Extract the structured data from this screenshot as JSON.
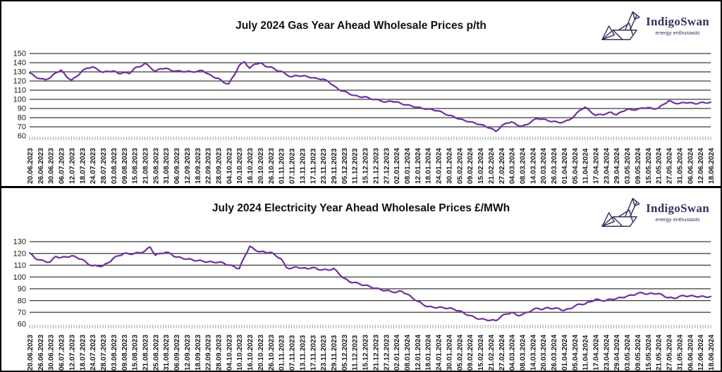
{
  "logo": {
    "brand": "IndigoSwan",
    "tagline": "energy enthusiasts"
  },
  "colors": {
    "line": "#7030A0",
    "grid": "#3a3a3a",
    "logo_navy": "#32325c",
    "tick": "#a0a0a0",
    "label": "#1a1a1a"
  },
  "chart_data": [
    {
      "type": "line",
      "title": "July 2024 Gas Year Ahead Wholesale Prices p/th",
      "ylabel": "p/th",
      "ylim": [
        60,
        150
      ],
      "yticks": [
        150,
        140,
        130,
        120,
        110,
        100,
        90,
        80,
        70,
        60
      ],
      "grid": true,
      "legend": "none",
      "points_per_label": 2,
      "x_labels": [
        "20.06.2023",
        "26.06.2023",
        "30.06.2023",
        "06.07.2023",
        "12.07.2023",
        "18.07.2023",
        "24.07.2023",
        "28.07.2023",
        "03.08.2023",
        "09.08.2023",
        "15.08.2023",
        "21.08.2023",
        "25.08.2023",
        "31.08.2023",
        "06.09.2023",
        "12.09.2023",
        "18.09.2023",
        "22.09.2023",
        "28.09.2023",
        "04.10.2023",
        "10.10.2023",
        "16.10.2023",
        "20.10.2023",
        "26.10.2023",
        "01.11.2023",
        "07.11.2023",
        "13.11.2023",
        "17.11.2023",
        "23.11.2023",
        "29.11.2023",
        "05.12.2023",
        "11.12.2023",
        "15.12.2023",
        "21.12.2023",
        "27.12.2023",
        "02.01.2024",
        "08.01.2024",
        "12.01.2024",
        "18.01.2024",
        "24.01.2024",
        "30.01.2024",
        "05.02.2024",
        "09.02.2024",
        "15.02.2024",
        "21.02.2024",
        "27.02.2024",
        "04.03.2024",
        "08.03.2024",
        "14.03.2024",
        "20.03.2024",
        "26.03.2024",
        "01.04.2024",
        "05.04.2024",
        "11.04.2024",
        "17.04.2024",
        "23.04.2024",
        "29.04.2024",
        "03.05.2024",
        "09.05.2024",
        "15.05.2024",
        "21.05.2024",
        "27.05.2024",
        "31.05.2024",
        "06.06.2024",
        "12.06.2024",
        "18.06.2024"
      ],
      "values": [
        129,
        125,
        122.5,
        121.5,
        124,
        129,
        132,
        125,
        121,
        125,
        131,
        134,
        135.5,
        132.5,
        129.5,
        130.5,
        131,
        128,
        129.5,
        128,
        134,
        135.5,
        139.5,
        135,
        130.5,
        133.5,
        134,
        131.5,
        131,
        130.5,
        130.5,
        130,
        130.5,
        131.5,
        128,
        124.5,
        123,
        118.5,
        117,
        126,
        137,
        141,
        134,
        138.5,
        140,
        136,
        135.5,
        132,
        130.8,
        127,
        124.5,
        126,
        125.5,
        125,
        123.5,
        122.5,
        122,
        119.5,
        115,
        110.5,
        109,
        106,
        104.3,
        102.5,
        103,
        100.5,
        100,
        98.5,
        97,
        98,
        97.3,
        95,
        94,
        92.5,
        91.4,
        90,
        89.5,
        88.5,
        87.5,
        85,
        82.5,
        81,
        78.5,
        77,
        75.5,
        74,
        72.5,
        70.5,
        68.5,
        65,
        70.5,
        74,
        75.4,
        72,
        70.7,
        72.5,
        77,
        79,
        78.5,
        76.5,
        76,
        74.5,
        75.5,
        77.5,
        82,
        88,
        91.5,
        87,
        82.5,
        83.5,
        84,
        86,
        83,
        86.5,
        89,
        88.5,
        89,
        90.5,
        91,
        89.5,
        90.5,
        94.5,
        98.5,
        96,
        95.5,
        96.5,
        96.5,
        95,
        96.5,
        96,
        97
      ]
    },
    {
      "type": "line",
      "title": "July 2024 Electricity Year Ahead Wholesale Prices £/MWh",
      "ylabel": "£/MWh",
      "ylim": [
        60,
        130
      ],
      "yticks": [
        130,
        120,
        110,
        100,
        90,
        80,
        70,
        60
      ],
      "grid": true,
      "legend": "none",
      "points_per_label": 2,
      "x_labels": [
        "20.06.2023",
        "26.06.2023",
        "30.06.2023",
        "06.07.2023",
        "12.07.2023",
        "18.07.2023",
        "24.07.2023",
        "28.07.2023",
        "03.08.2023",
        "09.08.2023",
        "15.08.2023",
        "21.08.2023",
        "25.08.2023",
        "31.08.2023",
        "06.09.2023",
        "12.09.2023",
        "18.09.2023",
        "22.09.2023",
        "28.09.2023",
        "04.10.2023",
        "10.10.2023",
        "16.10.2023",
        "20.10.2023",
        "26.10.2023",
        "01.11.2023",
        "07.11.2023",
        "13.11.2023",
        "17.11.2023",
        "23.11.2023",
        "29.11.2023",
        "05.12.2023",
        "11.12.2023",
        "15.12.2023",
        "21.12.2023",
        "27.12.2023",
        "02.01.2024",
        "08.01.2024",
        "12.01.2024",
        "18.01.2024",
        "24.01.2024",
        "30.01.2024",
        "05.02.2024",
        "09.02.2024",
        "15.02.2024",
        "21.02.2024",
        "27.02.2024",
        "04.03.2024",
        "08.03.2024",
        "14.03.2024",
        "20.03.2024",
        "26.03.2024",
        "01.04.2024",
        "05.04.2024",
        "11.04.2024",
        "17.04.2024",
        "23.04.2024",
        "29.04.2024",
        "03.05.2024",
        "09.05.2024",
        "15.05.2024",
        "21.05.2024",
        "27.05.2024",
        "31.05.2024",
        "06.06.2024",
        "12.06.2024",
        "18.06.2024"
      ],
      "values": [
        120.5,
        116,
        114.5,
        113,
        113,
        117.5,
        116.5,
        117,
        118,
        116.5,
        115,
        111.5,
        109.5,
        109.3,
        109.5,
        112,
        116,
        118,
        120,
        119.5,
        120,
        120.5,
        122,
        125.5,
        118.5,
        120,
        121,
        119.5,
        116.8,
        116.3,
        115.2,
        114.8,
        113.8,
        113.6,
        112.8,
        112.7,
        112.5,
        112,
        110,
        109,
        107,
        117,
        126,
        123,
        121.5,
        121,
        121,
        118,
        115.5,
        108,
        107.3,
        108.5,
        107.6,
        107,
        108.2,
        106.5,
        106.3,
        105.8,
        107.3,
        103,
        99,
        96,
        95.4,
        94,
        93,
        91.8,
        90.4,
        89.3,
        88.5,
        87.7,
        87,
        88,
        85.5,
        82.5,
        79.5,
        77,
        74.8,
        74.3,
        74.2,
        73.8,
        73.6,
        72.5,
        71.3,
        69,
        67.3,
        65.5,
        64.3,
        63.8,
        63.3,
        62.9,
        66.6,
        68.5,
        70,
        67.5,
        68,
        70,
        72,
        73.5,
        72.5,
        74,
        73.1,
        73.3,
        71.5,
        73,
        75.1,
        77,
        77.1,
        79,
        81,
        80.2,
        80,
        81.2,
        81.6,
        82.6,
        83.6,
        84.6,
        86,
        86.5,
        85.5,
        86,
        86,
        84,
        82.5,
        81.8,
        83.5,
        84,
        84,
        83.5,
        83.5,
        83,
        83.5
      ]
    }
  ]
}
